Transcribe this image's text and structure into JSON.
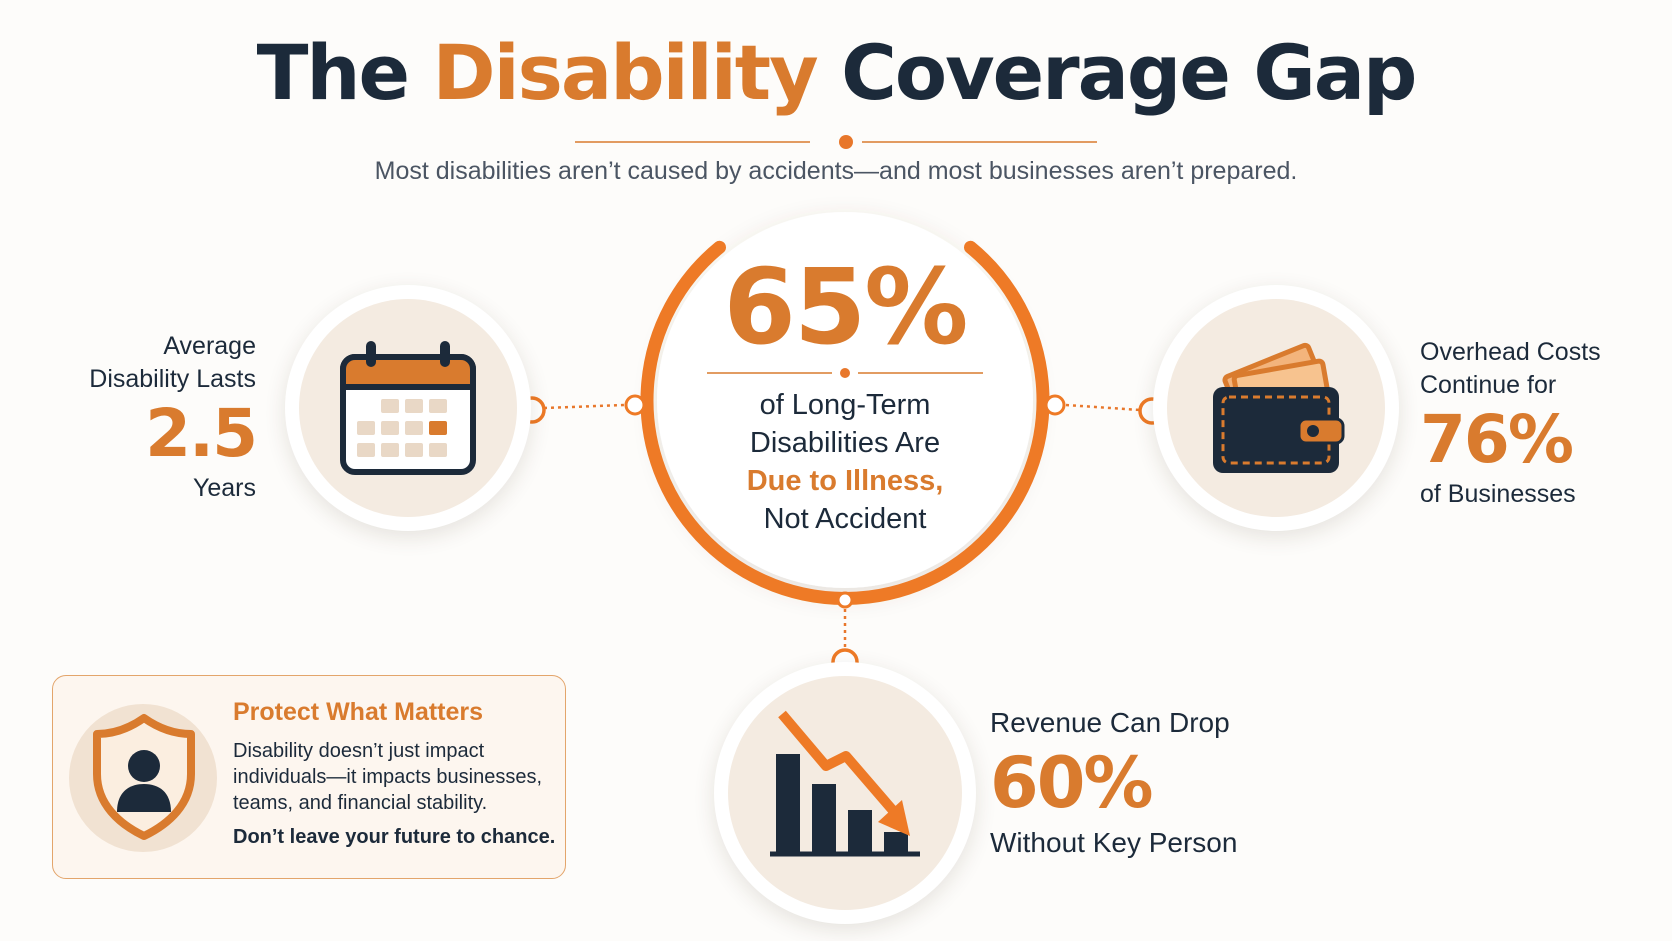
{
  "title": {
    "part1": "The",
    "accent": "Disability",
    "part2": "Coverage Gap"
  },
  "subtitle": "Most disabilities aren’t caused by accidents—and most businesses aren’t prepared.",
  "center": {
    "value": "65%",
    "line1": "of Long-Term",
    "line2": "Disabilities Are",
    "line3": "Due to Illness,",
    "line4": "Not Accident"
  },
  "left_stat": {
    "line1": "Average",
    "line2": "Disability Lasts",
    "value": "2.5",
    "unit": "Years",
    "icon": "calendar-icon"
  },
  "right_stat": {
    "line1": "Overhead Costs",
    "line2": "Continue for",
    "value": "76%",
    "line3": "of Businesses",
    "icon": "wallet-icon"
  },
  "bottom_stat": {
    "line1": "Revenue Can Drop",
    "value": "60%",
    "line2": "Without Key Person",
    "icon": "declining-chart-icon"
  },
  "protect": {
    "title": "Protect What Matters",
    "body1": "Disability doesn’t just impact",
    "body2": "individuals—it impacts businesses,",
    "body3": "teams, and financial stability.",
    "cta": "Don’t leave your future to chance.",
    "icon": "shield-person-icon"
  },
  "colors": {
    "accent": "#d97b2e",
    "dark": "#1c2a3a",
    "background": "#fdfcfa",
    "soft": "#f4ebe1"
  }
}
